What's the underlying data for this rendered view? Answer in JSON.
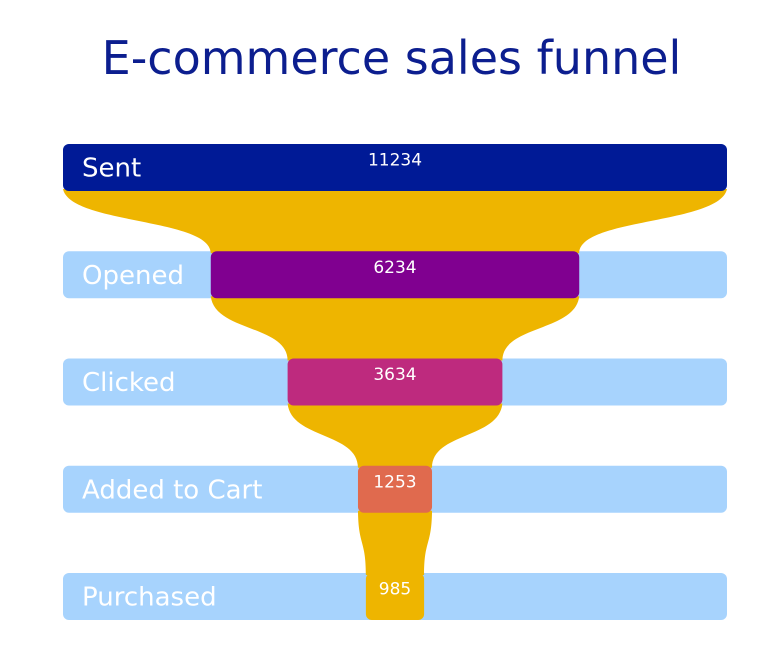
{
  "chart_data": {
    "type": "funnel",
    "title": "E-commerce sales funnel",
    "categories": [
      "Sent",
      "Opened",
      "Clicked",
      "Added to Cart",
      "Purchased"
    ],
    "values": [
      11234,
      6234,
      3634,
      1253,
      985
    ],
    "value_labels": [
      "11234",
      "6234",
      "3634",
      "1253",
      "985"
    ],
    "colors": {
      "stages": [
        "#001a96",
        "#800090",
        "#be2a7e",
        "#e06a4e",
        "#eeb500"
      ],
      "track": "#a7d3fd",
      "connector": "#eeb500",
      "title": "#0c1e8f"
    }
  }
}
